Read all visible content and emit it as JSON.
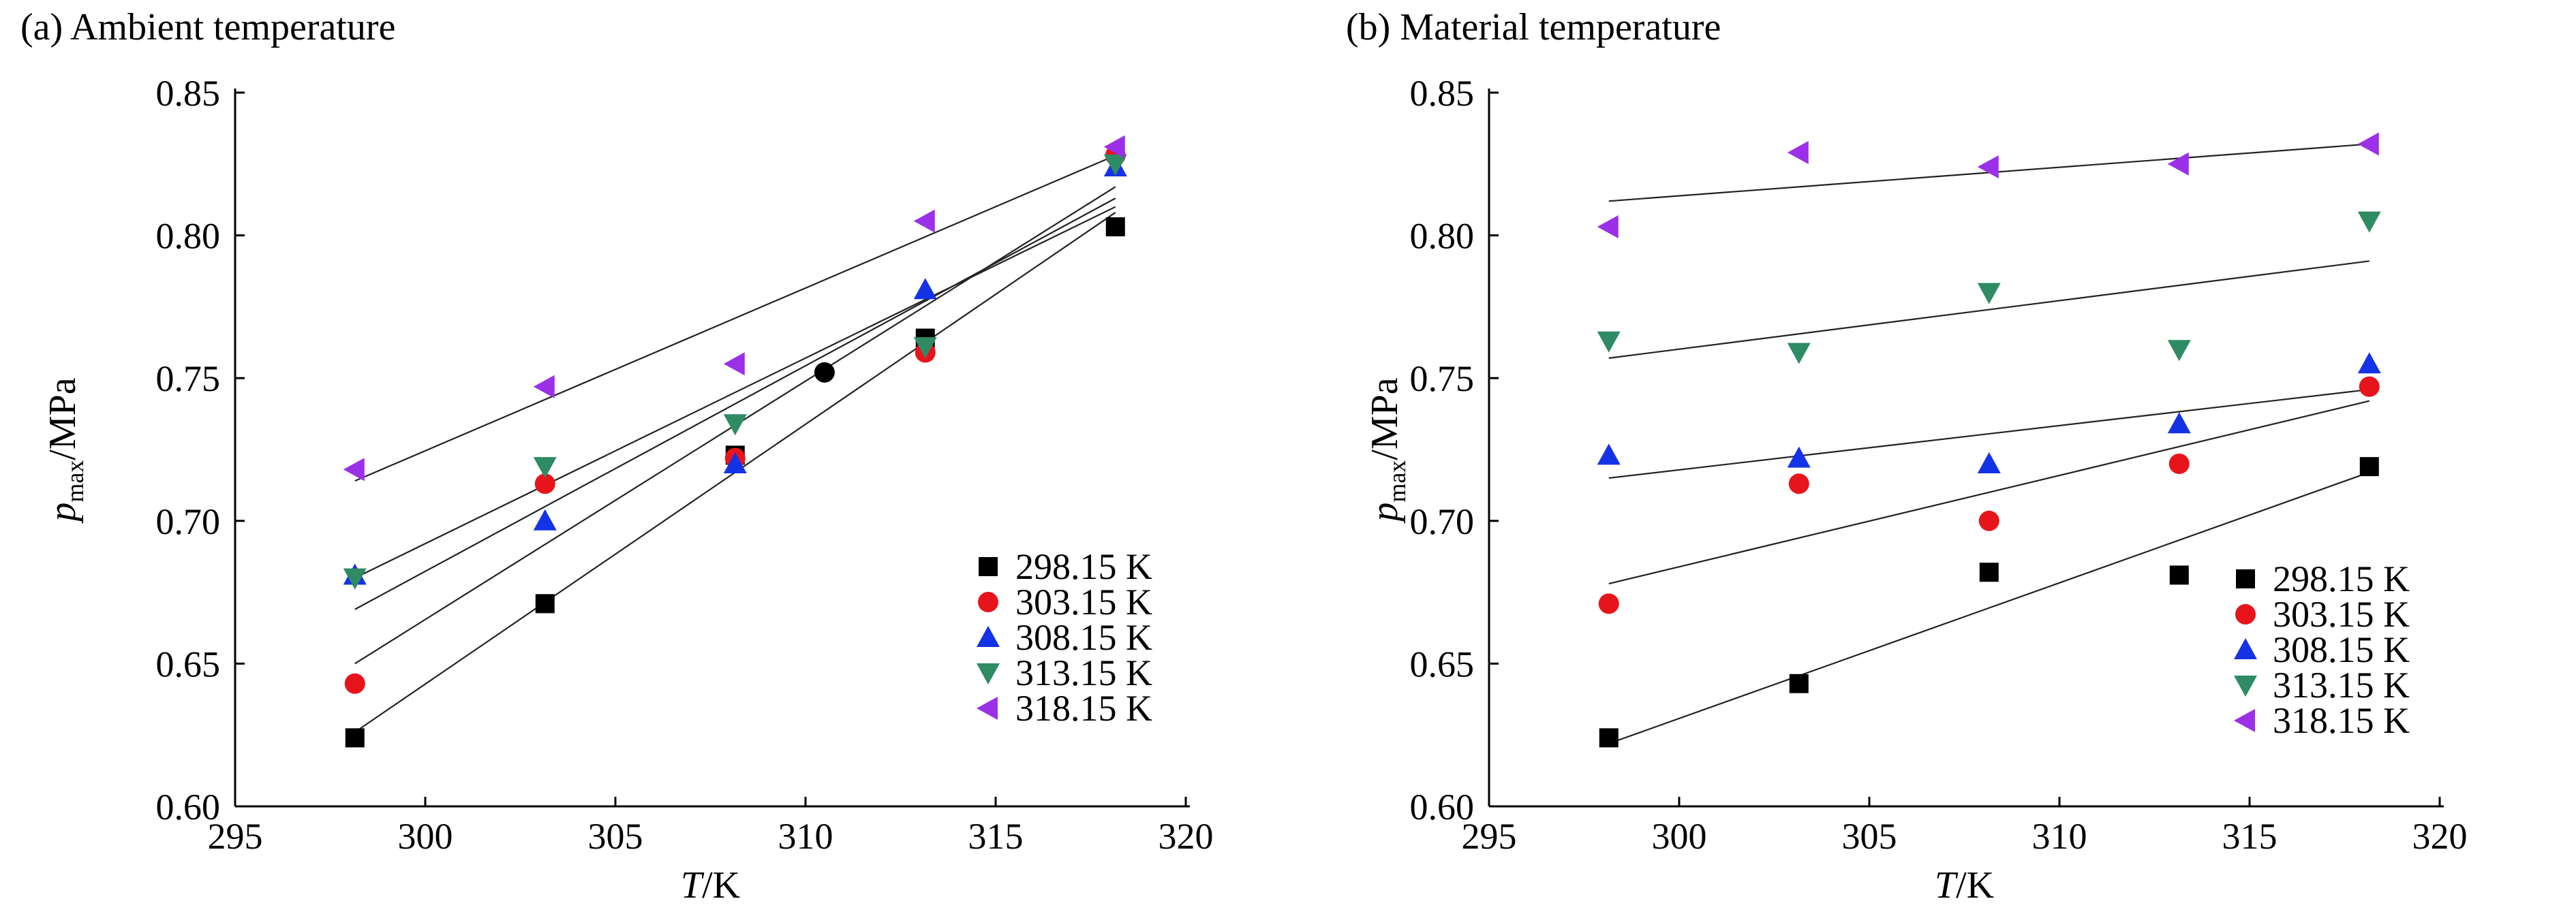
{
  "chart_data": [
    {
      "type": "scatter",
      "title": "(a) Ambient temperature",
      "xlabel": "T/K",
      "ylabel": "p_max/MPa",
      "ylabel_base": "p",
      "ylabel_sub": "max",
      "ylabel_rest": "/MPa",
      "xlabel_italic": "T",
      "xlabel_rest": "/K",
      "xlim": [
        295,
        320
      ],
      "ylim": [
        0.6,
        0.85
      ],
      "x_ticks": [
        "295",
        "300",
        "305",
        "310",
        "315",
        "320"
      ],
      "y_ticks": [
        "0.60",
        "0.65",
        "0.70",
        "0.75",
        "0.80",
        "0.85"
      ],
      "legend_position": "bottom-right",
      "grid": false,
      "series": [
        {
          "name": "298.15 K",
          "marker": "square",
          "color": "#000000",
          "points": [
            [
              298.15,
              0.624
            ],
            [
              303.15,
              0.671
            ],
            [
              308.15,
              0.723
            ],
            [
              313.15,
              0.764
            ],
            [
              318.15,
              0.803
            ]
          ],
          "fit": [
            [
              298.15,
              0.626
            ],
            [
              318.15,
              0.808
            ]
          ]
        },
        {
          "name": "303.15 K",
          "marker": "circle",
          "color": "#e8141c",
          "points": [
            [
              298.15,
              0.643
            ],
            [
              303.15,
              0.713
            ],
            [
              308.15,
              0.722
            ],
            [
              313.15,
              0.759
            ],
            [
              318.15,
              0.828
            ]
          ],
          "fit": [
            [
              298.15,
              0.65
            ],
            [
              318.15,
              0.817
            ]
          ]
        },
        {
          "name": "308.15 K",
          "marker": "triangle-up",
          "color": "#1432e6",
          "points": [
            [
              298.15,
              0.681
            ],
            [
              303.15,
              0.7
            ],
            [
              308.15,
              0.72
            ],
            [
              313.15,
              0.781
            ],
            [
              318.15,
              0.824
            ]
          ],
          "fit": [
            [
              298.15,
              0.669
            ],
            [
              318.15,
              0.813
            ]
          ]
        },
        {
          "name": "313.15 K",
          "marker": "triangle-down",
          "color": "#2e8b63",
          "points": [
            [
              298.15,
              0.68
            ],
            [
              303.15,
              0.719
            ],
            [
              308.15,
              0.734
            ],
            [
              313.15,
              0.761
            ],
            [
              318.15,
              0.825
            ]
          ],
          "fit": [
            [
              298.15,
              0.68
            ],
            [
              318.15,
              0.81
            ]
          ]
        },
        {
          "name": "318.15 K",
          "marker": "triangle-left",
          "color": "#9b30e8",
          "points": [
            [
              298.15,
              0.718
            ],
            [
              303.15,
              0.747
            ],
            [
              308.15,
              0.755
            ],
            [
              313.15,
              0.805
            ],
            [
              318.15,
              0.831
            ]
          ],
          "fit": [
            [
              298.15,
              0.714
            ],
            [
              318.15,
              0.828
            ]
          ]
        }
      ],
      "extra_points": [
        {
          "x": 310.5,
          "y": 0.752,
          "marker": "circle",
          "color": "#000000"
        }
      ]
    },
    {
      "type": "scatter",
      "title": "(b) Material temperature",
      "xlabel": "T/K",
      "ylabel": "p_max/MPa",
      "ylabel_base": "p",
      "ylabel_sub": "max",
      "ylabel_rest": "/MPa",
      "xlabel_italic": "T",
      "xlabel_rest": "/K",
      "xlim": [
        295,
        320
      ],
      "ylim": [
        0.6,
        0.85
      ],
      "x_ticks": [
        "295",
        "300",
        "305",
        "310",
        "315",
        "320"
      ],
      "y_ticks": [
        "0.60",
        "0.65",
        "0.70",
        "0.75",
        "0.80",
        "0.85"
      ],
      "legend_position": "bottom-right",
      "grid": false,
      "series": [
        {
          "name": "298.15 K",
          "marker": "square",
          "color": "#000000",
          "points": [
            [
              298.15,
              0.624
            ],
            [
              303.15,
              0.643
            ],
            [
              308.15,
              0.682
            ],
            [
              313.15,
              0.681
            ],
            [
              318.15,
              0.719
            ]
          ],
          "fit": [
            [
              298.15,
              0.622
            ],
            [
              318.15,
              0.717
            ]
          ]
        },
        {
          "name": "303.15 K",
          "marker": "circle",
          "color": "#e8141c",
          "points": [
            [
              298.15,
              0.671
            ],
            [
              303.15,
              0.713
            ],
            [
              308.15,
              0.7
            ],
            [
              313.15,
              0.72
            ],
            [
              318.15,
              0.747
            ]
          ],
          "fit": [
            [
              298.15,
              0.678
            ],
            [
              318.15,
              0.742
            ]
          ]
        },
        {
          "name": "308.15 K",
          "marker": "triangle-up",
          "color": "#1432e6",
          "points": [
            [
              298.15,
              0.723
            ],
            [
              303.15,
              0.722
            ],
            [
              308.15,
              0.72
            ],
            [
              313.15,
              0.734
            ],
            [
              318.15,
              0.755
            ]
          ],
          "fit": [
            [
              298.15,
              0.715
            ],
            [
              318.15,
              0.746
            ]
          ]
        },
        {
          "name": "313.15 K",
          "marker": "triangle-down",
          "color": "#2e8b63",
          "points": [
            [
              298.15,
              0.763
            ],
            [
              303.15,
              0.759
            ],
            [
              308.15,
              0.78
            ],
            [
              313.15,
              0.76
            ],
            [
              318.15,
              0.805
            ]
          ],
          "fit": [
            [
              298.15,
              0.757
            ],
            [
              318.15,
              0.791
            ]
          ]
        },
        {
          "name": "318.15 K",
          "marker": "triangle-left",
          "color": "#9b30e8",
          "points": [
            [
              298.15,
              0.803
            ],
            [
              303.15,
              0.829
            ],
            [
              308.15,
              0.824
            ],
            [
              313.15,
              0.825
            ],
            [
              318.15,
              0.832
            ]
          ],
          "fit": [
            [
              298.15,
              0.812
            ],
            [
              318.15,
              0.832
            ]
          ]
        }
      ],
      "extra_points": []
    }
  ]
}
